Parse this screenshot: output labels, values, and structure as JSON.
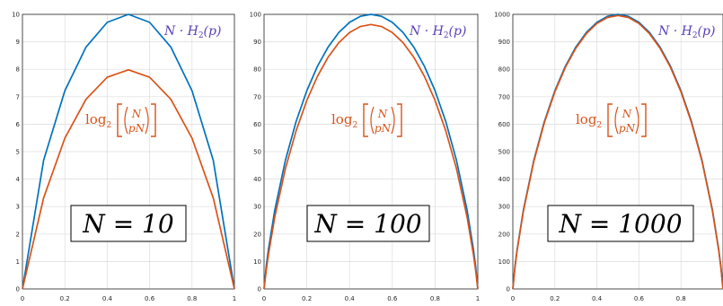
{
  "chart_data": [
    {
      "type": "line",
      "panel_label": "N = 10",
      "N": 10,
      "x": [
        0,
        0.1,
        0.2,
        0.3,
        0.4,
        0.5,
        0.6,
        0.7,
        0.8,
        0.9,
        1
      ],
      "series": [
        {
          "name": "N · H₂(p)",
          "color": "#0072BD",
          "values": [
            0,
            4.69,
            7.22,
            8.81,
            9.71,
            10.0,
            9.71,
            8.81,
            7.22,
            4.69,
            0
          ]
        },
        {
          "name": "log₂ (N choose pN)",
          "color": "#D95319",
          "values": [
            0,
            3.32,
            5.49,
            6.91,
            7.71,
            7.98,
            7.71,
            6.91,
            5.49,
            3.32,
            0
          ]
        }
      ],
      "xlim": [
        0,
        1
      ],
      "ylim": [
        0,
        10
      ],
      "xticks": [
        "0",
        "0.2",
        "0.4",
        "0.6",
        "0.8",
        "1"
      ],
      "yticks": [
        "0",
        "1",
        "2",
        "3",
        "4",
        "5",
        "6",
        "7",
        "8",
        "9",
        "10"
      ],
      "grid": true
    },
    {
      "type": "line",
      "panel_label": "N = 100",
      "N": 100,
      "x": [
        0,
        0.01,
        0.02,
        0.05,
        0.1,
        0.15,
        0.2,
        0.25,
        0.3,
        0.35,
        0.4,
        0.45,
        0.5,
        0.55,
        0.6,
        0.65,
        0.7,
        0.75,
        0.8,
        0.85,
        0.9,
        0.95,
        0.98,
        0.99,
        1
      ],
      "series": [
        {
          "name": "N · H₂(p)",
          "color": "#0072BD",
          "values": [
            0,
            8.08,
            14.14,
            28.64,
            46.9,
            60.98,
            72.19,
            81.13,
            88.13,
            93.41,
            97.1,
            99.28,
            100.0,
            99.28,
            97.1,
            93.41,
            88.13,
            81.13,
            72.19,
            60.98,
            46.9,
            28.64,
            14.14,
            8.08,
            0
          ]
        },
        {
          "name": "log₂ (N choose pN)",
          "color": "#D95319",
          "values": [
            0,
            6.64,
            12.27,
            26.1,
            43.86,
            57.62,
            68.64,
            77.48,
            84.45,
            89.71,
            93.38,
            95.57,
            96.3,
            95.57,
            93.38,
            89.71,
            84.45,
            77.48,
            68.64,
            57.62,
            43.86,
            26.1,
            12.27,
            6.64,
            0
          ]
        }
      ],
      "xlim": [
        0,
        1
      ],
      "ylim": [
        0,
        100
      ],
      "xticks": [
        "0",
        "0.2",
        "0.4",
        "0.6",
        "0.8",
        "1"
      ],
      "yticks": [
        "0",
        "10",
        "20",
        "30",
        "40",
        "50",
        "60",
        "70",
        "80",
        "90",
        "100"
      ],
      "grid": true
    },
    {
      "type": "line",
      "panel_label": "N = 1000",
      "N": 1000,
      "x": [
        0,
        0.01,
        0.02,
        0.05,
        0.1,
        0.15,
        0.2,
        0.25,
        0.3,
        0.35,
        0.4,
        0.45,
        0.5,
        0.55,
        0.6,
        0.65,
        0.7,
        0.75,
        0.8,
        0.85,
        0.9,
        0.95,
        0.98,
        0.99,
        1
      ],
      "series": [
        {
          "name": "N · H₂(p)",
          "color": "#0072BD",
          "values": [
            0,
            80.8,
            141.4,
            286.4,
            469.0,
            609.8,
            721.9,
            811.3,
            881.3,
            934.1,
            971.0,
            992.8,
            1000.0,
            992.8,
            971.0,
            934.1,
            881.3,
            811.3,
            721.9,
            609.8,
            469.0,
            286.4,
            141.4,
            80.8,
            0
          ]
        },
        {
          "name": "log₂ (N choose pN)",
          "color": "#D95319",
          "values": [
            0,
            77.6,
            137.9,
            282.5,
            464.9,
            605.7,
            717.7,
            807.1,
            877.1,
            929.9,
            966.7,
            988.6,
            995.8,
            988.6,
            966.7,
            929.9,
            877.1,
            807.1,
            717.7,
            605.7,
            464.9,
            282.5,
            137.9,
            77.6,
            0
          ]
        }
      ],
      "xlim": [
        0,
        1
      ],
      "ylim": [
        0,
        1000
      ],
      "xticks": [
        "0",
        "0.2",
        "0.4",
        "0.6",
        "0.8"
      ],
      "yticks": [
        "0",
        "100",
        "200",
        "300",
        "400",
        "500",
        "600",
        "700",
        "800",
        "900",
        "1000"
      ],
      "grid": true
    }
  ]
}
